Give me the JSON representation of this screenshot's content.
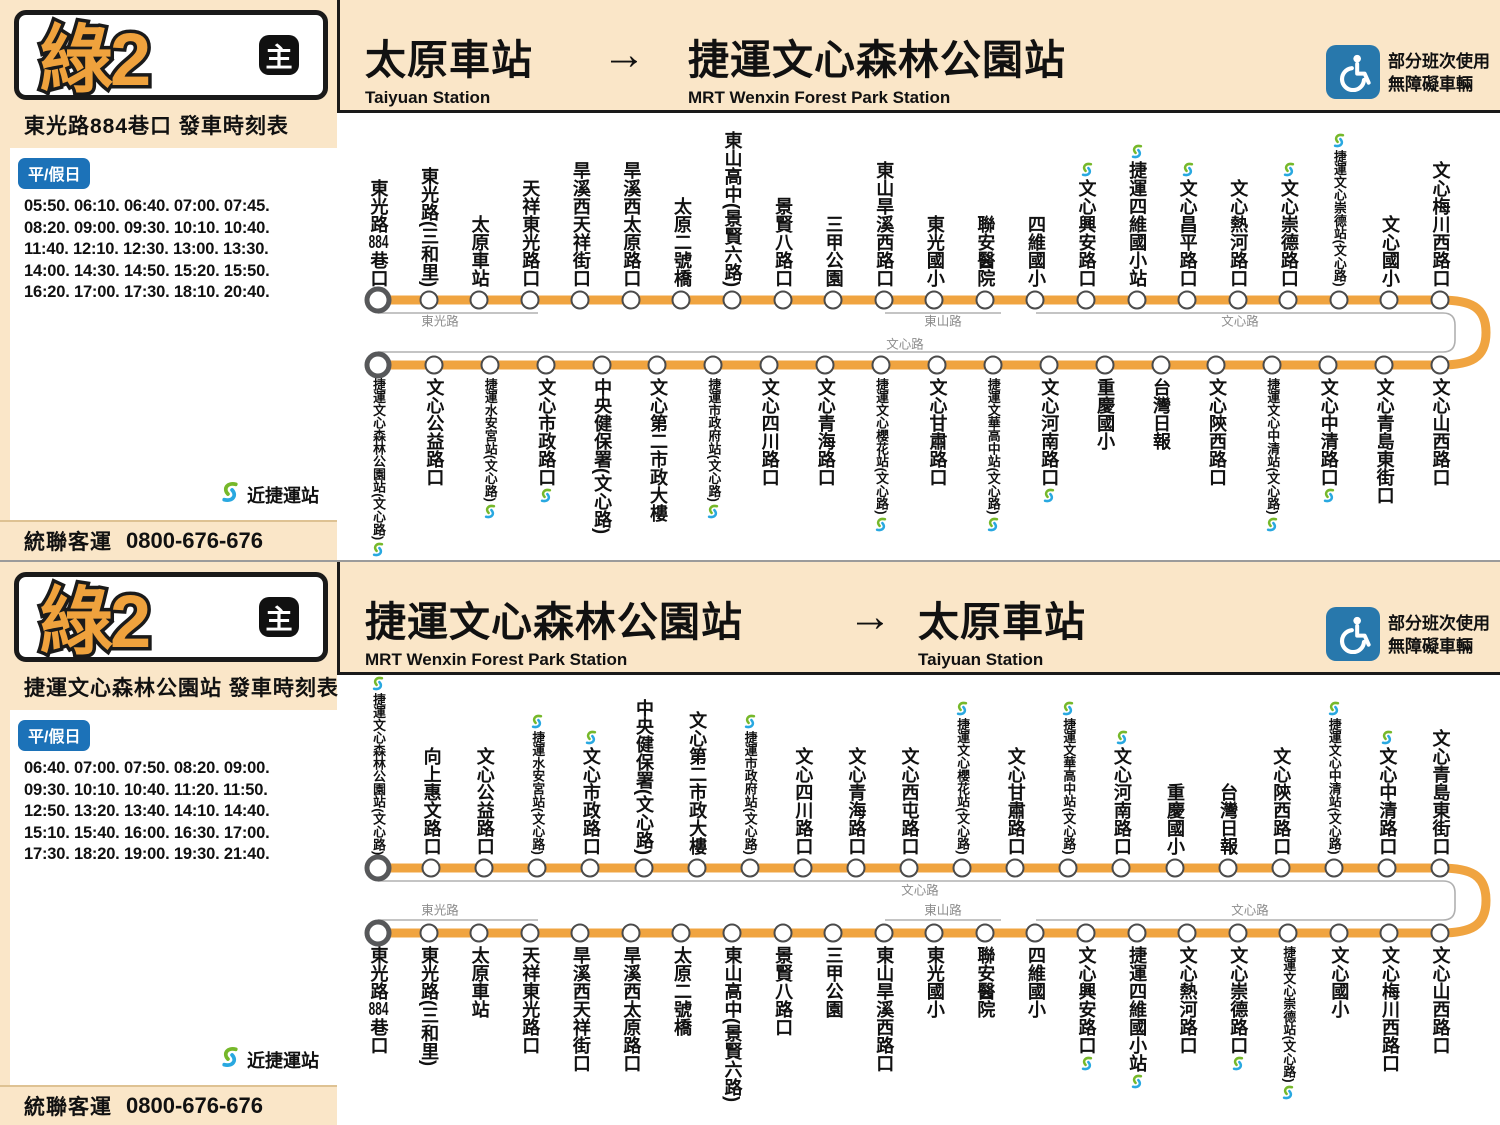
{
  "colors": {
    "line_orange": "#F0A440",
    "band_cream": "#FAE6C8",
    "badge_orange": "#EFA23D",
    "day_badge_blue": "#1C72B8",
    "accessible_blue": "#2878AC",
    "mrt_icon_green": "#76B82A",
    "mrt_icon_blue": "#29A8E0"
  },
  "panels": [
    {
      "badge": {
        "route": "綠2",
        "tag": "主"
      },
      "sidebar": {
        "schedule_title": "東光路884巷口  發車時刻表",
        "day_label": "平/假日",
        "time_lines": [
          "05:50. 06:10. 06:40. 07:00. 07:45.",
          "08:20. 09:00. 09:30. 10:10. 10:40.",
          "11:40. 12:10. 12:30. 13:00. 13:30.",
          "14:00. 14:30. 14:50. 15:20. 15:50.",
          "16:20. 17:00. 17:30. 18:10. 20:40."
        ],
        "legend_label": "近捷運站",
        "operator": "統聯客運",
        "phone": "0800-676-676"
      },
      "header": {
        "from": "太原車站",
        "from_en": "Taiyuan Station",
        "arrow": "→",
        "to": "捷運文心森林公園站",
        "to_en": "MRT Wenxin Forest Park Station",
        "accessible_line1": "部分班次使用",
        "accessible_line2": "無障礙車輛"
      },
      "route": {
        "road_labels": {
          "seg_left": "東光路",
          "seg_mid": "東山路",
          "seg_right": "文心路",
          "inner": "文心路"
        },
        "row1": [
          {
            "name": "東光路884巷口",
            "terminal": true
          },
          {
            "name": "東光路(三和里)"
          },
          {
            "name": "太原車站"
          },
          {
            "name": "天祥東光路口"
          },
          {
            "name": "旱溪西天祥街口"
          },
          {
            "name": "旱溪西太原路口"
          },
          {
            "name": "太原二號橋"
          },
          {
            "name": "東山高中(景賢六路)"
          },
          {
            "name": "景賢八路口"
          },
          {
            "name": "三甲公園"
          },
          {
            "name": "東山旱溪西路口"
          },
          {
            "name": "東光國小"
          },
          {
            "name": "聯安醫院"
          },
          {
            "name": "四維國小"
          },
          {
            "name": "文心興安路口",
            "mrt": true
          },
          {
            "name": "捷運四維國小站",
            "mrt": true
          },
          {
            "name": "文心昌平路口",
            "mrt": true
          },
          {
            "name": "文心熱河路口"
          },
          {
            "name": "文心崇德路口",
            "mrt": true
          },
          {
            "name": "捷運文心崇德站(文心路)",
            "mrt": true,
            "small": true
          },
          {
            "name": "文心國小"
          },
          {
            "name": "文心梅川西路口"
          }
        ],
        "row2": [
          {
            "name": "捷運文心森林公園站(文心路)",
            "mrt": true,
            "small": true,
            "terminal": true
          },
          {
            "name": "文心公益路口"
          },
          {
            "name": "捷運水安宮站(文心路)",
            "mrt": true,
            "small": true
          },
          {
            "name": "文心市政路口",
            "mrt": true
          },
          {
            "name": "中央健保署(文心路)"
          },
          {
            "name": "文心第二市政大樓"
          },
          {
            "name": "捷運市政府站(文心路)",
            "mrt": true,
            "small": true
          },
          {
            "name": "文心四川路口"
          },
          {
            "name": "文心青海路口"
          },
          {
            "name": "捷運文心櫻花站(文心路)",
            "mrt": true,
            "small": true
          },
          {
            "name": "文心甘肅路口"
          },
          {
            "name": "捷運文華高中站(文心路)",
            "mrt": true,
            "small": true
          },
          {
            "name": "文心河南路口",
            "mrt": true
          },
          {
            "name": "重慶國小"
          },
          {
            "name": "台灣日報"
          },
          {
            "name": "文心陝西路口"
          },
          {
            "name": "捷運文心中清站(文心路)",
            "mrt": true,
            "small": true
          },
          {
            "name": "文心中清路口",
            "mrt": true
          },
          {
            "name": "文心青島東街口"
          },
          {
            "name": "文心山西路口"
          }
        ]
      }
    },
    {
      "badge": {
        "route": "綠2",
        "tag": "主"
      },
      "sidebar": {
        "schedule_title": "捷運文心森林公園站  發車時刻表",
        "day_label": "平/假日",
        "time_lines": [
          "06:40. 07:00. 07:50. 08:20. 09:00.",
          "09:30. 10:10. 10:40. 11:20. 11:50.",
          "12:50. 13:20. 13:40. 14:10. 14:40.",
          "15:10. 15:40. 16:00. 16:30. 17:00.",
          "17:30. 18:20. 19:00. 19:30. 21:40."
        ],
        "legend_label": "近捷運站",
        "operator": "統聯客運",
        "phone": "0800-676-676"
      },
      "header": {
        "from": "捷運文心森林公園站",
        "from_en": "MRT Wenxin Forest Park Station",
        "arrow": "→",
        "to": "太原車站",
        "to_en": "Taiyuan Station",
        "accessible_line1": "部分班次使用",
        "accessible_line2": "無障礙車輛"
      },
      "route": {
        "road_labels": {
          "seg_left": "東光路",
          "seg_mid": "東山路",
          "seg_right": "文心路",
          "inner": "文心路"
        },
        "row1": [
          {
            "name": "捷運文心森林公園站(文心路)",
            "mrt": true,
            "small": true,
            "terminal": true
          },
          {
            "name": "向上惠文路口"
          },
          {
            "name": "文心公益路口"
          },
          {
            "name": "捷運水安宮站(文心路)",
            "mrt": true,
            "small": true
          },
          {
            "name": "文心市政路口",
            "mrt": true
          },
          {
            "name": "中央健保署(文心路)"
          },
          {
            "name": "文心第二市政大樓"
          },
          {
            "name": "捷運市政府站(文心路)",
            "mrt": true,
            "small": true
          },
          {
            "name": "文心四川路口"
          },
          {
            "name": "文心青海路口"
          },
          {
            "name": "文心西屯路口"
          },
          {
            "name": "捷運文心櫻花站(文心路)",
            "mrt": true,
            "small": true
          },
          {
            "name": "文心甘肅路口"
          },
          {
            "name": "捷運文華高中站(文心路)",
            "mrt": true,
            "small": true
          },
          {
            "name": "文心河南路口",
            "mrt": true
          },
          {
            "name": "重慶國小"
          },
          {
            "name": "台灣日報"
          },
          {
            "name": "文心陝西路口"
          },
          {
            "name": "捷運文心中清站(文心路)",
            "mrt": true,
            "small": true
          },
          {
            "name": "文心中清路口",
            "mrt": true
          },
          {
            "name": "文心青島東街口"
          }
        ],
        "row2": [
          {
            "name": "東光路884巷口",
            "terminal": true
          },
          {
            "name": "東光路(三和里)"
          },
          {
            "name": "太原車站"
          },
          {
            "name": "天祥東光路口"
          },
          {
            "name": "旱溪西天祥街口"
          },
          {
            "name": "旱溪西太原路口"
          },
          {
            "name": "太原二號橋"
          },
          {
            "name": "東山高中(景賢六路)"
          },
          {
            "name": "景賢八路口"
          },
          {
            "name": "三甲公園"
          },
          {
            "name": "東山旱溪西路口"
          },
          {
            "name": "東光國小"
          },
          {
            "name": "聯安醫院"
          },
          {
            "name": "四維國小"
          },
          {
            "name": "文心興安路口",
            "mrt": true
          },
          {
            "name": "捷運四維國小站",
            "mrt": true
          },
          {
            "name": "文心熱河路口"
          },
          {
            "name": "文心崇德路口",
            "mrt": true
          },
          {
            "name": "捷運文心崇德站(文心路)",
            "mrt": true,
            "small": true
          },
          {
            "name": "文心國小"
          },
          {
            "name": "文心梅川西路口"
          },
          {
            "name": "文心山西路口"
          }
        ]
      }
    }
  ]
}
